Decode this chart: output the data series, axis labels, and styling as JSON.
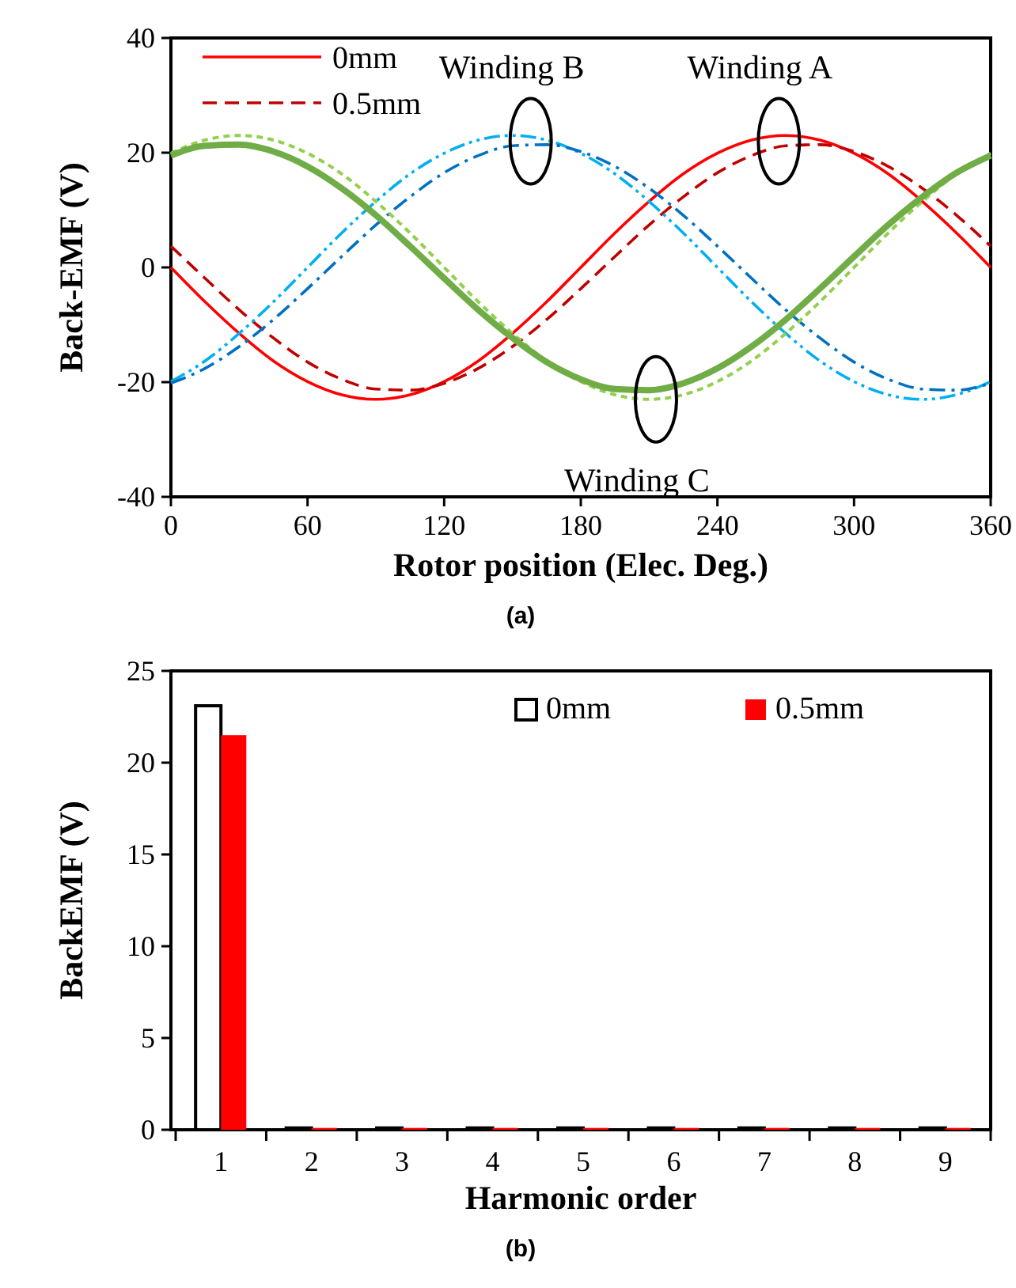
{
  "chart_data": [
    {
      "type": "line",
      "xlabel": "Rotor position (Elec. Deg.)",
      "ylabel": "Back-EMF (V)",
      "x": [
        0,
        15,
        30,
        45,
        60,
        75,
        90,
        105,
        120,
        135,
        150,
        165,
        180,
        195,
        210,
        225,
        240,
        255,
        270,
        285,
        300,
        315,
        330,
        345,
        360
      ],
      "xlim": [
        0,
        360
      ],
      "xticks": [
        0,
        60,
        120,
        180,
        240,
        300,
        360
      ],
      "ylim": [
        -40,
        40
      ],
      "yticks": [
        -40,
        -20,
        0,
        20,
        40
      ],
      "grid": false,
      "legend": "top left",
      "series": [
        {
          "name": "0mm",
          "color": "#ff0000",
          "line_style": "solid",
          "values": [
            0,
            -6.0,
            -11.5,
            -16.3,
            -19.9,
            -22.2,
            -23,
            -22.2,
            -19.9,
            -16.3,
            -11.5,
            -6.0,
            0,
            6.0,
            11.5,
            16.3,
            19.9,
            22.2,
            23,
            22.2,
            19.9,
            16.3,
            11.5,
            6.0,
            0
          ]
        },
        {
          "name": "0.5mm",
          "color": "#c00000",
          "line_style": "dashed",
          "values": [
            3.7,
            -1.9,
            -7.4,
            -12.3,
            -16.5,
            -19.5,
            -21.2,
            -21.4,
            -20.2,
            -17.6,
            -13.8,
            -9.1,
            -3.7,
            1.9,
            7.4,
            12.3,
            16.5,
            19.5,
            21.2,
            21.4,
            20.2,
            17.6,
            13.8,
            9.1,
            3.7
          ]
        },
        {
          "color": "#00b0f0",
          "line_style": "dashdotdot",
          "values": [
            -19.9,
            -16.3,
            -11.5,
            -6.0,
            0,
            6.0,
            11.5,
            16.3,
            19.9,
            22.2,
            23,
            22.2,
            19.9,
            16.3,
            11.5,
            6.0,
            0,
            -6.0,
            -11.5,
            -16.3,
            -19.9,
            -22.2,
            -23,
            -22.2,
            -19.9
          ]
        },
        {
          "color": "#0070c0",
          "line_style": "dashdot",
          "values": [
            -20.2,
            -17.6,
            -13.8,
            -9.1,
            -3.7,
            1.9,
            7.4,
            12.3,
            16.5,
            19.5,
            21.2,
            21.4,
            20.2,
            17.6,
            13.8,
            9.1,
            3.7,
            -1.9,
            -7.4,
            -12.3,
            -16.5,
            -19.5,
            -21.2,
            -21.4,
            -20.2
          ]
        },
        {
          "color": "#92d050",
          "line_style": "dotted",
          "values": [
            19.9,
            22.2,
            23,
            22.2,
            19.9,
            16.3,
            11.5,
            6.0,
            0,
            -6.0,
            -11.5,
            -16.3,
            -19.9,
            -22.2,
            -23,
            -22.2,
            -19.9,
            -16.3,
            -11.5,
            -6.0,
            0,
            6.0,
            11.5,
            16.3,
            19.9
          ]
        },
        {
          "color": "#70ad47",
          "line_style": "solid",
          "values": [
            19.5,
            21.2,
            21.4,
            20.2,
            17.6,
            13.8,
            9.1,
            3.7,
            -1.9,
            -7.4,
            -12.3,
            -16.5,
            -19.5,
            -21.2,
            -21.4,
            -20.2,
            -17.6,
            -13.8,
            -9.1,
            -3.7,
            1.9,
            7.4,
            12.3,
            16.5,
            19.5
          ]
        }
      ],
      "annotations": [
        {
          "text": "Winding B",
          "x": 158,
          "y": 22
        },
        {
          "text": "Winding A",
          "x": 267,
          "y": 22
        },
        {
          "text": "Winding C",
          "x": 213,
          "y": -23
        },
        "(a)"
      ]
    },
    {
      "type": "bar",
      "xlabel": "Harmonic order",
      "ylabel": "BackEMF (V)",
      "categories": [
        "1",
        "2",
        "3",
        "4",
        "5",
        "6",
        "7",
        "8",
        "9"
      ],
      "ylim": [
        0,
        25
      ],
      "yticks": [
        0,
        5,
        10,
        15,
        20,
        25
      ],
      "grid": false,
      "legend": "top right",
      "series": [
        {
          "name": "0mm",
          "color": "#ffffff",
          "values": [
            23.1,
            0.1,
            0.1,
            0.1,
            0.1,
            0.1,
            0.1,
            0.1,
            0.1
          ]
        },
        {
          "name": "0.5mm",
          "color": "#ff0000",
          "values": [
            21.5,
            0.1,
            0.1,
            0.1,
            0.1,
            0.1,
            0.1,
            0.1,
            0.1
          ]
        }
      ],
      "annotations": [
        "(b)"
      ]
    }
  ]
}
